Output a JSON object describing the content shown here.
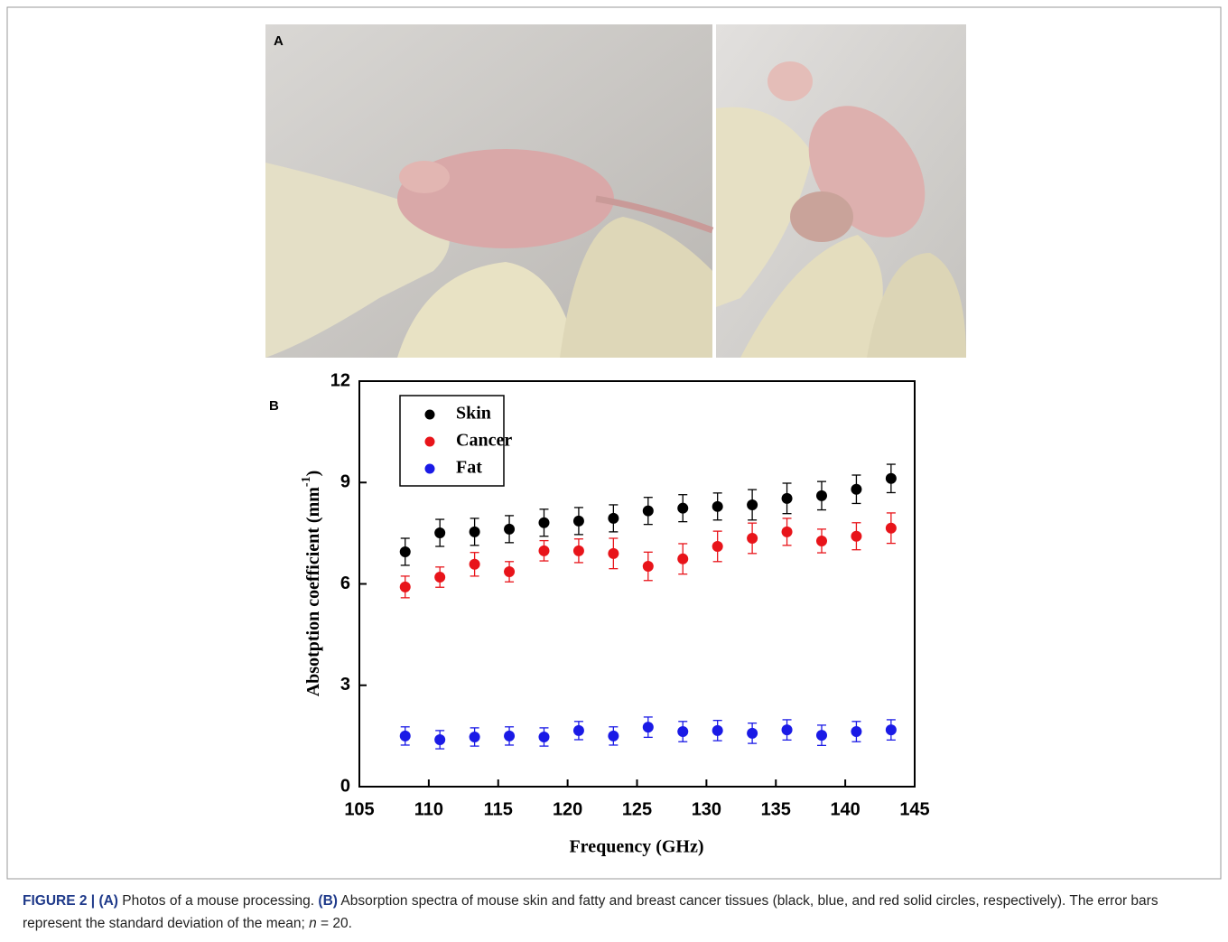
{
  "panel_labels": {
    "a": "A",
    "b": "B"
  },
  "chart_data": {
    "type": "scatter",
    "xlabel": "Frequency (GHz)",
    "ylabel": {
      "main": "Absotption coefficient (mm",
      "sup": "-1",
      "end": ")"
    },
    "x": [
      108.3,
      110.8,
      113.3,
      115.8,
      118.3,
      120.8,
      123.3,
      125.8,
      128.3,
      130.8,
      133.3,
      135.8,
      138.3,
      140.8,
      143.3
    ],
    "series": [
      {
        "name": "Skin",
        "color": "#000000",
        "values": [
          6.95,
          7.51,
          7.54,
          7.62,
          7.81,
          7.86,
          7.94,
          8.16,
          8.24,
          8.29,
          8.34,
          8.53,
          8.61,
          8.8,
          9.12
        ],
        "errors": [
          0.4,
          0.4,
          0.4,
          0.4,
          0.4,
          0.4,
          0.4,
          0.4,
          0.4,
          0.4,
          0.45,
          0.45,
          0.42,
          0.42,
          0.42
        ]
      },
      {
        "name": "Cancer",
        "color": "#e8141a",
        "values": [
          5.91,
          6.2,
          6.58,
          6.36,
          6.98,
          6.98,
          6.9,
          6.52,
          6.74,
          7.11,
          7.35,
          7.54,
          7.27,
          7.41,
          7.65
        ],
        "errors": [
          0.32,
          0.3,
          0.35,
          0.3,
          0.3,
          0.35,
          0.45,
          0.42,
          0.45,
          0.45,
          0.45,
          0.4,
          0.35,
          0.4,
          0.45
        ]
      },
      {
        "name": "Fat",
        "color": "#1a1ae6",
        "values": [
          1.5,
          1.39,
          1.47,
          1.5,
          1.47,
          1.66,
          1.5,
          1.76,
          1.63,
          1.66,
          1.58,
          1.68,
          1.52,
          1.63,
          1.68
        ],
        "errors": [
          0.27,
          0.27,
          0.27,
          0.27,
          0.27,
          0.27,
          0.27,
          0.3,
          0.3,
          0.3,
          0.3,
          0.3,
          0.3,
          0.3,
          0.3
        ]
      }
    ],
    "xlim": [
      105,
      145
    ],
    "ylim": [
      0,
      12
    ],
    "xticks": [
      105,
      110,
      115,
      120,
      125,
      130,
      135,
      140,
      145
    ],
    "yticks": [
      0,
      3,
      6,
      9,
      12
    ],
    "legend": "upper left"
  },
  "caption": {
    "label": "FIGURE 2 |",
    "a_label": "(A)",
    "a_text": " Photos of a mouse processing. ",
    "b_label": "(B)",
    "b_text": " Absorption spectra of mouse skin and fatty and breast cancer tissues (black, blue, and red solid circles, respectively). The error bars represent the standard deviation of the mean; ",
    "n": "n",
    "n_text": " = 20."
  }
}
